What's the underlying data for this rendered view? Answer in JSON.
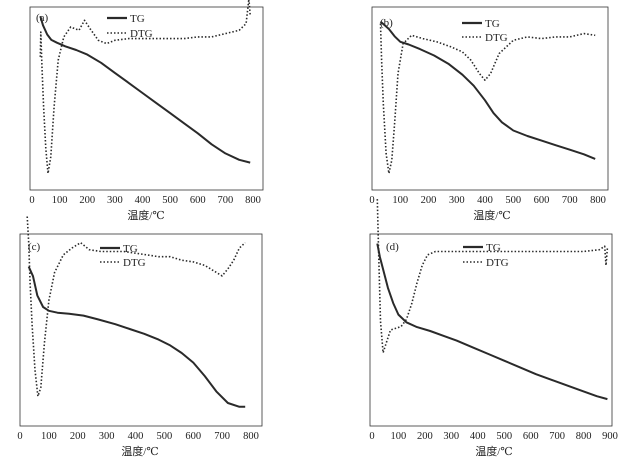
{
  "chart_data": [
    {
      "type": "line",
      "panel_label": "(a)",
      "xlabel": "温度/℃",
      "xlim": [
        0,
        800
      ],
      "x_ticks": [
        0,
        100,
        200,
        300,
        400,
        500,
        600,
        700,
        800
      ],
      "tg_y_range": [
        0,
        100
      ],
      "dtg_y_range": [
        -100,
        10
      ],
      "series": [
        {
          "name": "TG",
          "style": "solid",
          "x": [
            30,
            40,
            55,
            70,
            90,
            120,
            160,
            200,
            250,
            300,
            350,
            400,
            450,
            500,
            550,
            600,
            650,
            700,
            750,
            790
          ],
          "values": [
            95,
            90,
            85,
            82,
            80.5,
            78.5,
            76.5,
            74,
            69.5,
            64,
            58.5,
            53,
            47.5,
            42,
            36.5,
            31,
            25,
            20,
            16.5,
            15
          ]
        },
        {
          "name": "DTG",
          "style": "dotted",
          "x": [
            30,
            32,
            36,
            42,
            50,
            58,
            68,
            80,
            95,
            115,
            140,
            170,
            190,
            210,
            240,
            270,
            300,
            350,
            400,
            450,
            500,
            550,
            600,
            650,
            700,
            750,
            775,
            785,
            790
          ],
          "values": [
            -20,
            -5,
            -25,
            -50,
            -75,
            -90,
            -80,
            -50,
            -22,
            -8,
            -2,
            -4,
            2,
            -3,
            -10,
            -12,
            -10,
            -9,
            -9,
            -9,
            -9,
            -9,
            -8,
            -8,
            -6,
            -4,
            0,
            15,
            5
          ]
        }
      ]
    },
    {
      "type": "line",
      "panel_label": "(b)",
      "xlabel": "温度/℃",
      "xlim": [
        0,
        800
      ],
      "x_ticks": [
        0,
        100,
        200,
        300,
        400,
        500,
        600,
        700,
        800
      ],
      "tg_y_range": [
        0,
        100
      ],
      "dtg_y_range": [
        -100,
        10
      ],
      "series": [
        {
          "name": "TG",
          "style": "solid",
          "x": [
            30,
            45,
            60,
            80,
            100,
            130,
            170,
            220,
            270,
            320,
            360,
            400,
            430,
            460,
            500,
            550,
            600,
            650,
            700,
            750,
            790
          ],
          "values": [
            92,
            90,
            88,
            84,
            81,
            79.5,
            77,
            73.5,
            69,
            63,
            57,
            49,
            42,
            37,
            32.5,
            29.5,
            27,
            24.5,
            22,
            19.5,
            17
          ]
        },
        {
          "name": "DTG",
          "style": "dotted",
          "x": [
            30,
            34,
            40,
            50,
            60,
            70,
            80,
            92,
            110,
            140,
            180,
            230,
            280,
            320,
            350,
            380,
            400,
            420,
            450,
            500,
            550,
            600,
            650,
            700,
            750,
            790
          ],
          "values": [
            0,
            -22,
            -48,
            -78,
            -90,
            -82,
            -60,
            -30,
            -12,
            -7,
            -9,
            -11,
            -14,
            -17,
            -22,
            -30,
            -34,
            -30,
            -18,
            -10,
            -8,
            -9,
            -8,
            -8,
            -6,
            -7
          ]
        }
      ]
    },
    {
      "type": "line",
      "panel_label": "(c)",
      "xlabel": "温度/℃",
      "xlim": [
        0,
        800
      ],
      "x_ticks": [
        0,
        100,
        200,
        300,
        400,
        500,
        600,
        700,
        800
      ],
      "tg_y_range": [
        0,
        100
      ],
      "dtg_y_range": [
        -100,
        10
      ],
      "series": [
        {
          "name": "TG",
          "style": "solid",
          "x": [
            30,
            45,
            60,
            80,
            100,
            130,
            170,
            220,
            270,
            330,
            380,
            430,
            480,
            520,
            560,
            600,
            640,
            680,
            720,
            760,
            780
          ],
          "values": [
            83,
            78,
            68,
            62,
            60,
            59,
            58.5,
            57.5,
            55.5,
            53,
            50.5,
            48,
            45,
            42,
            38,
            33,
            26,
            18,
            12,
            10,
            10
          ]
        },
        {
          "name": "DTG",
          "style": "dotted",
          "x": [
            25,
            30,
            35,
            42,
            52,
            62,
            72,
            85,
            100,
            120,
            150,
            180,
            210,
            240,
            280,
            320,
            360,
            400,
            440,
            480,
            520,
            560,
            600,
            640,
            680,
            700,
            720,
            740,
            760,
            780
          ],
          "values": [
            20,
            5,
            -18,
            -42,
            -68,
            -83,
            -78,
            -52,
            -28,
            -12,
            -2,
            2,
            5,
            1,
            0,
            0,
            0,
            -1,
            -2,
            -3,
            -3,
            -5,
            -6,
            -8,
            -12,
            -14,
            -10,
            -5,
            2,
            5
          ]
        }
      ]
    },
    {
      "type": "line",
      "panel_label": "(d)",
      "xlabel": "温度/℃",
      "xlim": [
        0,
        900
      ],
      "x_ticks": [
        0,
        100,
        200,
        300,
        400,
        500,
        600,
        700,
        800,
        900
      ],
      "tg_y_range": [
        0,
        100
      ],
      "dtg_y_range": [
        -100,
        10
      ],
      "series": [
        {
          "name": "TG",
          "style": "solid",
          "x": [
            20,
            30,
            45,
            60,
            80,
            100,
            130,
            170,
            220,
            270,
            320,
            380,
            440,
            500,
            560,
            620,
            680,
            740,
            800,
            850,
            890
          ],
          "values": [
            95,
            88,
            80,
            72,
            64,
            58,
            54,
            51.5,
            49.5,
            47,
            44.5,
            41,
            37.5,
            34,
            30.5,
            27,
            24,
            21,
            18,
            15.5,
            14
          ]
        },
        {
          "name": "DTG",
          "style": "dotted",
          "x": [
            20,
            25,
            32,
            42,
            55,
            70,
            90,
            110,
            130,
            150,
            170,
            190,
            210,
            240,
            300,
            400,
            500,
            600,
            700,
            800,
            860,
            880,
            885,
            890
          ],
          "values": [
            30,
            0,
            -40,
            -58,
            -52,
            -45,
            -44,
            -43,
            -39,
            -30,
            -18,
            -8,
            -2,
            0,
            0,
            0,
            0,
            0,
            0,
            0,
            1,
            3,
            -8,
            2
          ]
        }
      ]
    }
  ]
}
